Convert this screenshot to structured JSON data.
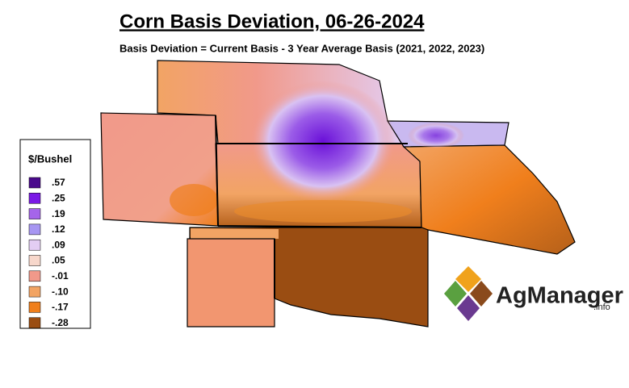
{
  "header": {
    "title": "Corn Basis Deviation, 06-26-2024",
    "subtitle": "Basis Deviation = Current Basis - 3 Year Average Basis (2021, 2022, 2023)"
  },
  "legend": {
    "title": "$/Bushel",
    "items": [
      {
        "label": ".57",
        "color": "#4a0a8c"
      },
      {
        "label": ".25",
        "color": "#7a18e6"
      },
      {
        "label": ".19",
        "color": "#a565ea"
      },
      {
        "label": ".12",
        "color": "#a796f2"
      },
      {
        "label": ".09",
        "color": "#e3cdf3"
      },
      {
        "label": ".05",
        "color": "#f7d7cb"
      },
      {
        "label": "-.01",
        "color": "#f1998a"
      },
      {
        "label": "-.10",
        "color": "#f2a464"
      },
      {
        "label": "-.17",
        "color": "#f07f1c"
      },
      {
        "label": "-.28",
        "color": "#9a4d12"
      }
    ]
  },
  "logo": {
    "name": "AgManager",
    "suffix": ".info"
  }
}
